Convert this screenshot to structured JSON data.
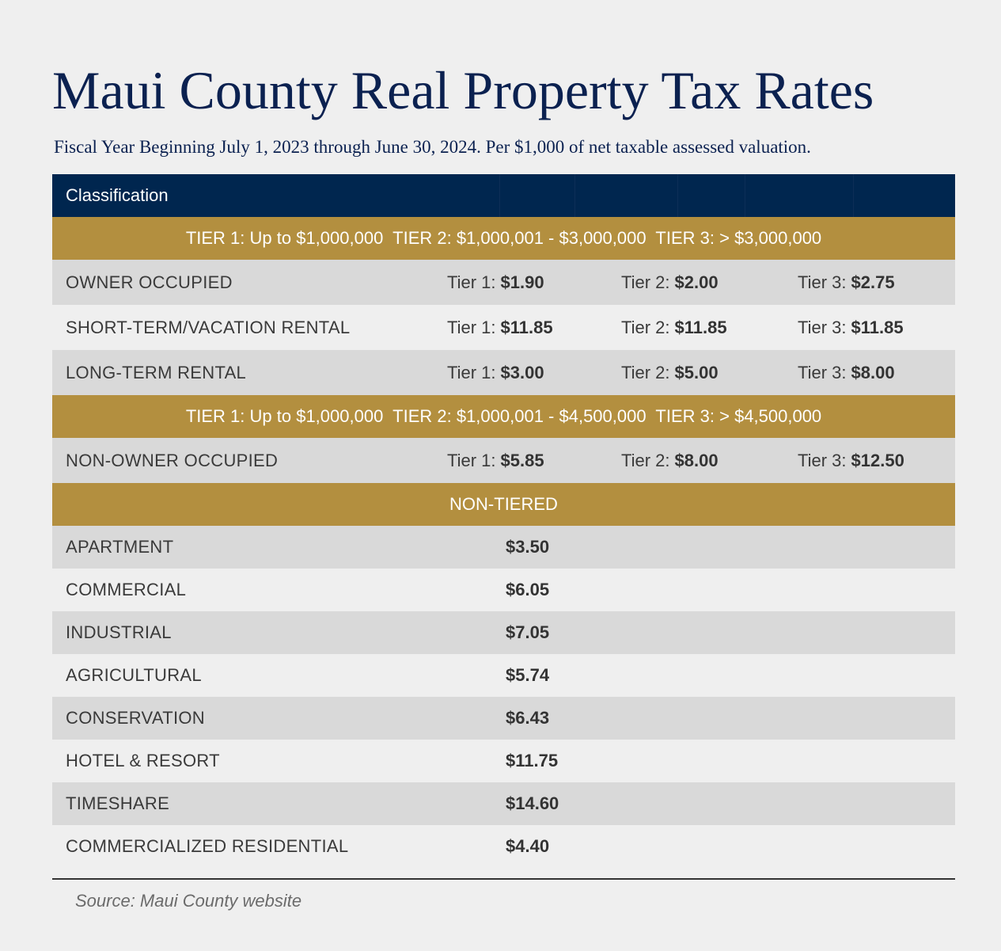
{
  "title": "Maui County Real Property Tax Rates",
  "subtitle": "Fiscal Year Beginning July 1, 2023 through June 30, 2024. Per $1,000 of net taxable assessed valuation.",
  "table": {
    "header": "Classification",
    "band1": "TIER 1: Up to $1,000,000  TIER 2: $1,000,001 - $3,000,000  TIER 3: > $3,000,000",
    "tiered_group1": [
      {
        "label": "OWNER OCCUPIED",
        "tier1_prefix": "Tier 1:",
        "tier1": "$1.90",
        "tier2_prefix": "Tier 2:",
        "tier2": "$2.00",
        "tier3_prefix": "Tier 3:",
        "tier3": "$2.75"
      },
      {
        "label": "SHORT-TERM/VACATION RENTAL",
        "tier1_prefix": "Tier 1:",
        "tier1": "$11.85",
        "tier2_prefix": "Tier 2:",
        "tier2": "$11.85",
        "tier3_prefix": "Tier 3:",
        "tier3": "$11.85"
      },
      {
        "label": "LONG-TERM RENTAL",
        "tier1_prefix": "Tier 1:",
        "tier1": "$3.00",
        "tier2_prefix": "Tier 2:",
        "tier2": "$5.00",
        "tier3_prefix": "Tier 3:",
        "tier3": "$8.00"
      }
    ],
    "band2": "TIER 1: Up to $1,000,000  TIER 2: $1,000,001 - $4,500,000  TIER 3: > $4,500,000",
    "tiered_group2": [
      {
        "label": "NON-OWNER OCCUPIED",
        "tier1_prefix": "Tier 1:",
        "tier1": "$5.85",
        "tier2_prefix": "Tier 2:",
        "tier2": "$8.00",
        "tier3_prefix": "Tier 3:",
        "tier3": "$12.50"
      }
    ],
    "band3": "NON-TIERED",
    "non_tiered": [
      {
        "label": "APARTMENT",
        "rate": "$3.50"
      },
      {
        "label": "COMMERCIAL",
        "rate": "$6.05"
      },
      {
        "label": "INDUSTRIAL",
        "rate": "$7.05"
      },
      {
        "label": "AGRICULTURAL",
        "rate": "$5.74"
      },
      {
        "label": "CONSERVATION",
        "rate": "$6.43"
      },
      {
        "label": "HOTEL & RESORT",
        "rate": "$11.75"
      },
      {
        "label": "TIMESHARE",
        "rate": "$14.60"
      },
      {
        "label": "COMMERCIALIZED RESIDENTIAL",
        "rate": "$4.40"
      }
    ]
  },
  "source": "Source: Maui County website",
  "colors": {
    "navy": "#00264f",
    "gold": "#b38f3f",
    "row_shade": "#d9d9d9",
    "row_light": "#efefef"
  }
}
